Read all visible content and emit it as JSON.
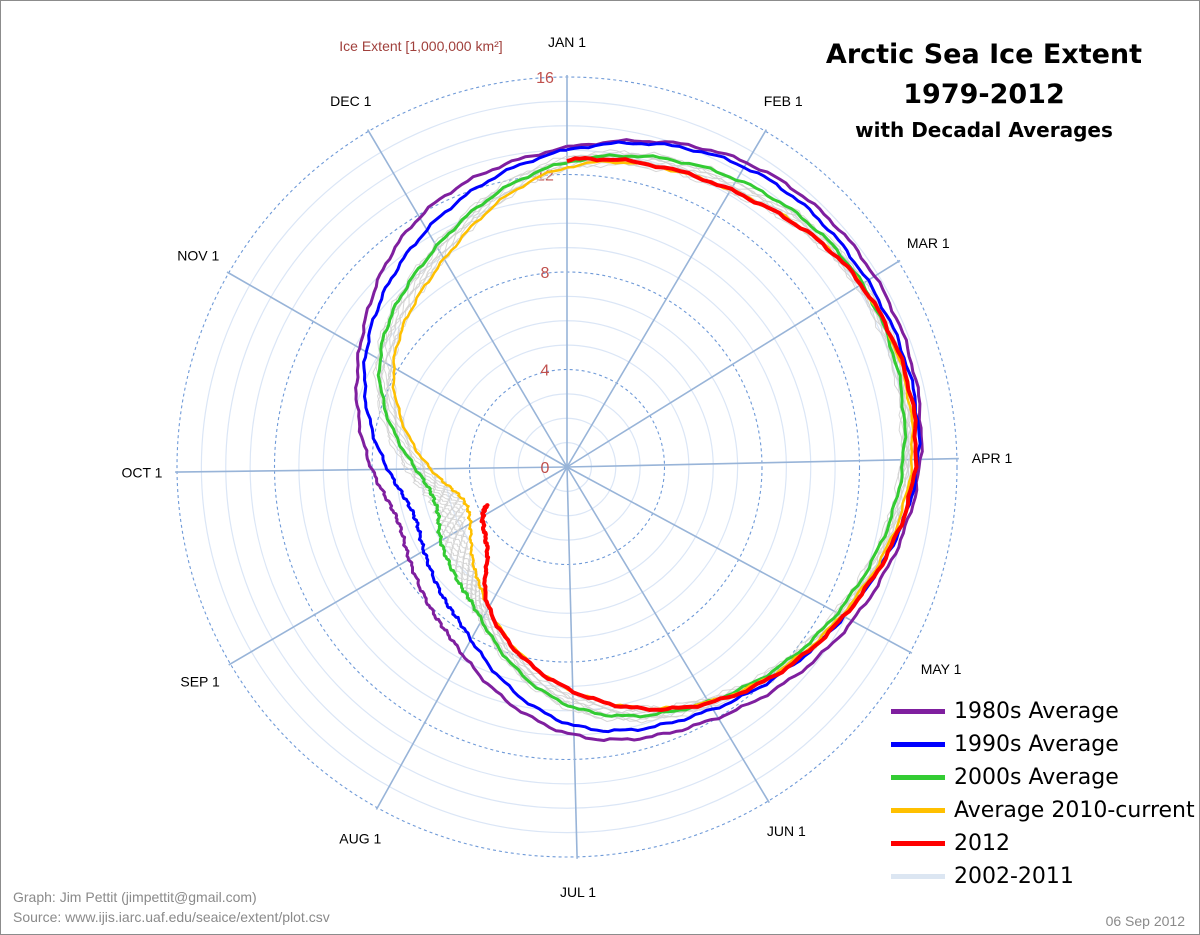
{
  "chart_data": {
    "type": "polar-line",
    "title": "Arctic Sea Ice Extent",
    "title_line2": "1979-2012",
    "subtitle": "with Decadal Averages",
    "radial_axis": {
      "label": "Ice Extent [1,000,000 km²]",
      "range": [
        0,
        16
      ],
      "ticks": [
        "0",
        "4",
        "8",
        "12",
        "16"
      ],
      "tick_values": [
        0,
        4,
        8,
        12,
        16
      ],
      "minor_step": 1,
      "tick_color": "#c0504d"
    },
    "angular_axis": {
      "direction": "clockwise",
      "start": "top",
      "labels": [
        "JAN 1",
        "FEB 1",
        "MAR 1",
        "APR 1",
        "MAY 1",
        "JUN 1",
        "JUL 1",
        "AUG 1",
        "SEP 1",
        "OCT 1",
        "NOV 1",
        "DEC 1"
      ]
    },
    "grid": true,
    "legend_position": "bottom-right",
    "series": [
      {
        "name": "2002-2011",
        "color": "#dce6f2",
        "line_color": "#d0d0d0",
        "kind": "band",
        "x": [
          "Jan 1",
          "Feb 1",
          "Mar 1",
          "Apr 1",
          "May 1",
          "Jun 1",
          "Jul 1",
          "Aug 1",
          "Aug 15",
          "Sep 1",
          "Sep 15",
          "Oct 1",
          "Nov 1",
          "Dec 1"
        ],
        "low": [
          12.2,
          13.1,
          14.0,
          13.7,
          12.5,
          11.1,
          9.3,
          6.7,
          5.6,
          4.9,
          4.6,
          5.6,
          8.2,
          9.9
        ],
        "high": [
          12.7,
          13.7,
          14.4,
          14.1,
          12.9,
          11.5,
          10.0,
          7.3,
          6.5,
          6.0,
          5.7,
          6.6,
          9.0,
          10.6
        ]
      },
      {
        "name": "1980s Average",
        "color": "#7f1f9f",
        "x": [
          "Jan 1",
          "Feb 1",
          "Mar 1",
          "Apr 1",
          "May 1",
          "Jun 1",
          "Jul 1",
          "Aug 1",
          "Aug 15",
          "Sep 1",
          "Sep 15",
          "Oct 1",
          "Nov 1",
          "Dec 1"
        ],
        "values": [
          13.1,
          14.5,
          14.85,
          14.5,
          13.3,
          12.0,
          11.0,
          8.8,
          8.1,
          7.5,
          7.3,
          8.0,
          9.8,
          11.9
        ]
      },
      {
        "name": "1990s Average",
        "color": "#0000ff",
        "x": [
          "Jan 1",
          "Feb 1",
          "Mar 1",
          "Apr 1",
          "May 1",
          "Jun 1",
          "Jul 1",
          "Aug 1",
          "Aug 15",
          "Sep 1",
          "Sep 15",
          "Oct 1",
          "Nov 1",
          "Dec 1"
        ],
        "values": [
          13.0,
          14.3,
          14.5,
          14.4,
          12.9,
          11.6,
          10.6,
          8.1,
          7.4,
          6.8,
          6.6,
          7.35,
          9.5,
          11.3
        ]
      },
      {
        "name": "2000s Average",
        "color": "#33cc33",
        "x": [
          "Jan 1",
          "Feb 1",
          "Mar 1",
          "Apr 1",
          "May 1",
          "Jun 1",
          "Jul 1",
          "Aug 1",
          "Aug 15",
          "Sep 1",
          "Sep 15",
          "Oct 1",
          "Nov 1",
          "Dec 1"
        ],
        "values": [
          12.5,
          13.7,
          14.25,
          13.8,
          12.6,
          11.25,
          9.85,
          7.2,
          6.5,
          6.0,
          5.6,
          6.2,
          8.85,
          10.5
        ]
      },
      {
        "name": "Average 2010-current",
        "color": "#ffc000",
        "x": [
          "Jan 1",
          "Feb 1",
          "Mar 1",
          "Apr 1",
          "May 1",
          "Jun 1",
          "Jul 1",
          "Aug 1",
          "Aug 15",
          "Sep 1",
          "Sep 15",
          "Oct 1",
          "Nov 1",
          "Dec 1"
        ],
        "values": [
          12.3,
          13.2,
          14.2,
          14.15,
          12.8,
          11.25,
          9.2,
          6.6,
          5.6,
          4.6,
          4.5,
          5.6,
          8.2,
          9.9
        ]
      },
      {
        "name": "2012",
        "color": "#ff0000",
        "closed": false,
        "x": [
          "Jan 1",
          "Feb 1",
          "Mar 1",
          "Apr 1",
          "May 1",
          "Jun 1",
          "Jul 1",
          "Aug 1",
          "Aug 15",
          "Sep 1",
          "Sep 6"
        ],
        "values": [
          12.6,
          13.2,
          14.2,
          14.3,
          12.9,
          11.3,
          9.2,
          6.6,
          4.8,
          4.0,
          3.65
        ]
      }
    ]
  },
  "credits": {
    "graph": "Graph: Jim Pettit (jimpettit@gmail.com)",
    "source": "Source: www.ijis.iarc.uaf.edu/seaice/extent/plot.csv"
  },
  "date": "06 Sep 2012"
}
